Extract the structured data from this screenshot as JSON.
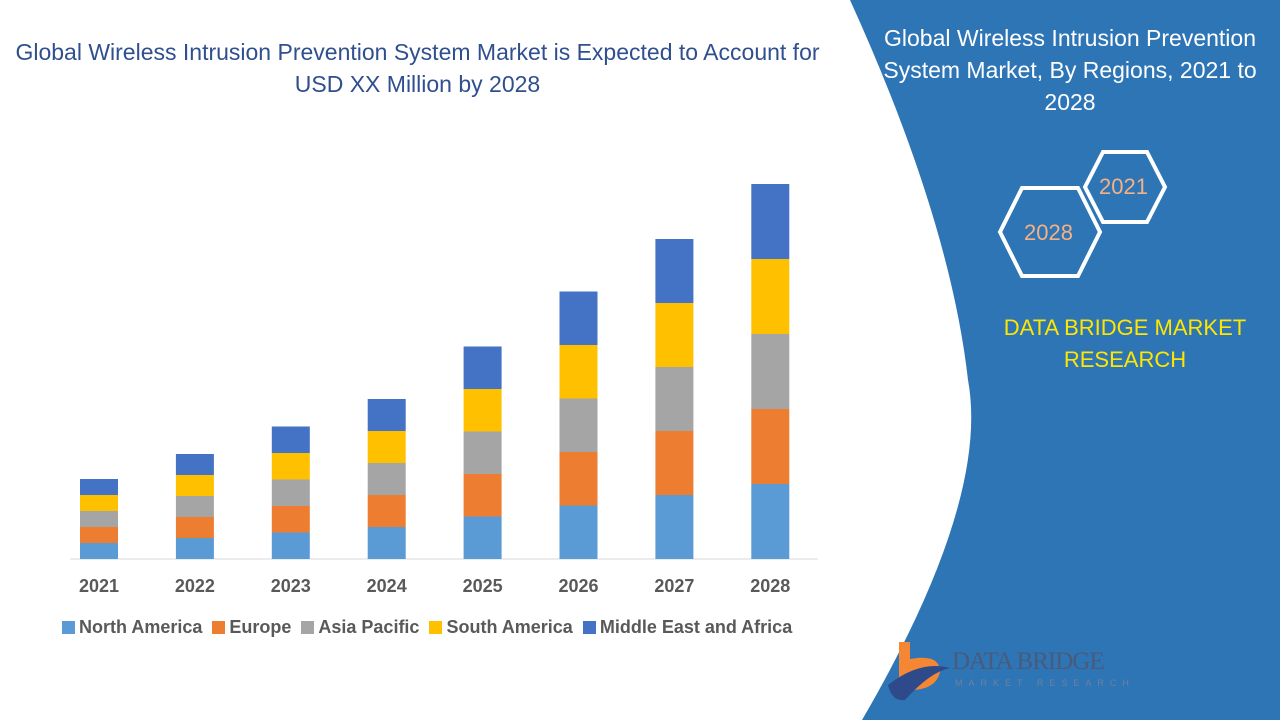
{
  "header": {
    "title": "Global Wireless Intrusion Prevention System Market is Expected to Account for USD XX Million by 2028"
  },
  "side_panel": {
    "title": "Global Wireless Intrusion Prevention System Market, By Regions, 2021 to 2028",
    "hex_labels": [
      "2021",
      "2028"
    ],
    "brand": "DATA BRIDGE MARKET RESEARCH",
    "logo_text": "DATA BRIDGE",
    "logo_subtext": "MARKET RESEARCH",
    "panel_color": "#2e75b6"
  },
  "chart_data": {
    "type": "bar",
    "stacked": true,
    "categories": [
      "2021",
      "2022",
      "2023",
      "2024",
      "2025",
      "2026",
      "2027",
      "2028"
    ],
    "series": [
      {
        "name": "North America",
        "color": "#5b9bd5",
        "values": [
          3.2,
          4.2,
          5.3,
          6.4,
          8.5,
          10.7,
          12.8,
          15.0
        ]
      },
      {
        "name": "Europe",
        "color": "#ed7d31",
        "values": [
          3.2,
          4.2,
          5.3,
          6.4,
          8.5,
          10.7,
          12.8,
          15.0
        ]
      },
      {
        "name": "Asia Pacific",
        "color": "#a5a5a5",
        "values": [
          3.2,
          4.2,
          5.3,
          6.4,
          8.5,
          10.7,
          12.8,
          15.0
        ]
      },
      {
        "name": "South America",
        "color": "#ffc000",
        "values": [
          3.2,
          4.2,
          5.3,
          6.4,
          8.5,
          10.7,
          12.8,
          15.0
        ]
      },
      {
        "name": "Middle East and Africa",
        "color": "#4472c4",
        "values": [
          3.2,
          4.2,
          5.3,
          6.4,
          8.5,
          10.7,
          12.8,
          15.0
        ]
      }
    ],
    "title": "",
    "xlabel": "",
    "ylabel": "",
    "y_axis_shown": false,
    "grid": false,
    "legend_placement": "bottom"
  }
}
